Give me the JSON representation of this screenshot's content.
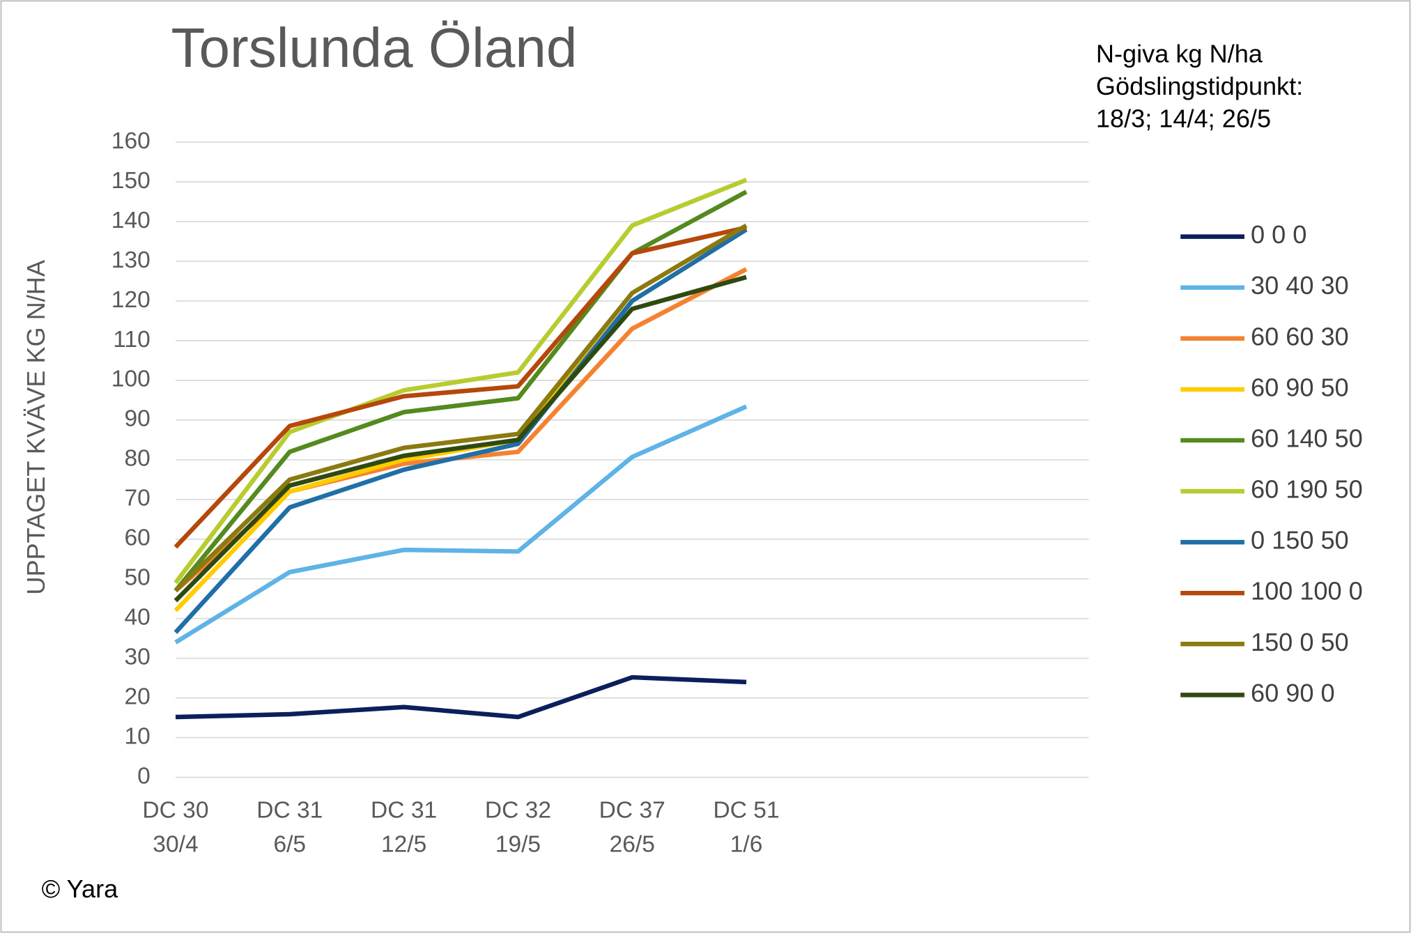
{
  "chart_data": {
    "type": "line",
    "title": "Torslunda Öland",
    "annotation": [
      "N-giva kg N/ha",
      "Gödslingstidpunkt:",
      "18/3; 14/4; 26/5"
    ],
    "y_label": "UPPTAGET KVÄVE KG N/HA",
    "footer": "© Yara",
    "categories": [
      [
        "DC 30",
        "30/4"
      ],
      [
        "DC 31",
        "6/5"
      ],
      [
        "DC 31",
        "12/5"
      ],
      [
        "DC 32",
        "19/5"
      ],
      [
        "DC 37",
        "26/5"
      ],
      [
        "DC 51",
        "1/6"
      ],
      null,
      null,
      null
    ],
    "ylim": [
      0,
      160
    ],
    "yticks": [
      0,
      10,
      20,
      30,
      40,
      50,
      60,
      70,
      80,
      90,
      100,
      110,
      120,
      130,
      140,
      150,
      160
    ],
    "grid": true,
    "legend": "right",
    "series": [
      {
        "name": "0 0 0",
        "color": "#0b1f5c",
        "values": [
          15.2,
          15.9,
          17.7,
          15.2,
          25.2,
          24.0,
          null,
          null,
          null
        ]
      },
      {
        "name": "30 40 30",
        "color": "#5fb3e6",
        "values": [
          34,
          51.7,
          57.3,
          56.9,
          80.7,
          93.4,
          null,
          null,
          null
        ]
      },
      {
        "name": "60 60 30",
        "color": "#f58231",
        "values": [
          47,
          72,
          79,
          82,
          113,
          128,
          null,
          null,
          null
        ]
      },
      {
        "name": "60 90 50",
        "color": "#ffcc00",
        "values": [
          42,
          72,
          80,
          85,
          120,
          138,
          null,
          null,
          null
        ]
      },
      {
        "name": "60 140 50",
        "color": "#548a1e",
        "values": [
          47,
          82,
          92,
          95.5,
          132,
          147.5,
          null,
          null,
          null
        ]
      },
      {
        "name": "60 190 50",
        "color": "#b8cc30",
        "values": [
          49,
          87,
          97.5,
          102,
          139,
          150.5,
          null,
          null,
          null
        ]
      },
      {
        "name": "0 150 50",
        "color": "#1f6fa8",
        "values": [
          36.5,
          68,
          77.5,
          84,
          120,
          138,
          null,
          null,
          null
        ]
      },
      {
        "name": "100 100 0",
        "color": "#b5480b",
        "values": [
          58,
          88.5,
          96,
          98.5,
          132,
          138.5,
          null,
          null,
          null
        ]
      },
      {
        "name": "150 0 50",
        "color": "#8b7a10",
        "values": [
          47,
          75,
          83,
          86.5,
          122,
          139,
          null,
          null,
          null
        ]
      },
      {
        "name": "60 90 0",
        "color": "#2f4a0f",
        "values": [
          44.5,
          73.5,
          81,
          85,
          118,
          126,
          null,
          null,
          null
        ]
      }
    ]
  }
}
